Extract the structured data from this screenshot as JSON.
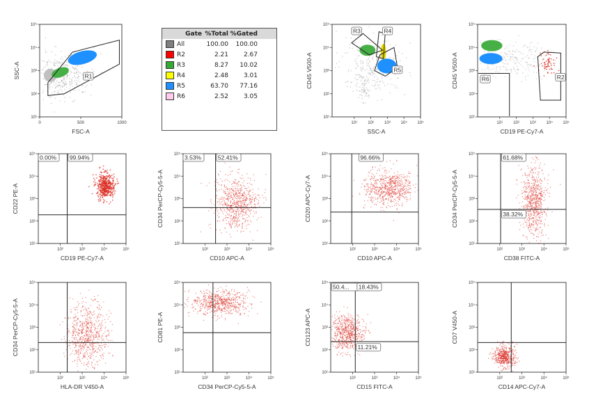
{
  "gate_table": {
    "headers": [
      "Gate",
      "%Total",
      "%Gated"
    ],
    "rows": [
      {
        "gate": "All",
        "total": "100.00",
        "gated": "100.00",
        "color": "#808080"
      },
      {
        "gate": "R2",
        "total": "2.21",
        "gated": "2.67",
        "color": "#ff0000"
      },
      {
        "gate": "R3",
        "total": "8.27",
        "gated": "10.02",
        "color": "#33aa33"
      },
      {
        "gate": "R4",
        "total": "2.48",
        "gated": "3.01",
        "color": "#ffff00"
      },
      {
        "gate": "R5",
        "total": "63.70",
        "gated": "77.16",
        "color": "#1e90ff"
      },
      {
        "gate": "R6",
        "total": "2.52",
        "gated": "3.05",
        "color": "#ffccee"
      }
    ]
  },
  "chart_data": [
    {
      "id": "p1",
      "type": "scatter",
      "xlabel": "FSC-A",
      "ylabel": "SSC-A",
      "xscale": "linear",
      "xticks": [
        "0",
        "500",
        "1000"
      ],
      "yticks": [
        "10¹",
        "10²",
        "10³",
        "10⁴",
        "10⁵"
      ],
      "gates": [
        "R1"
      ],
      "populations": [
        "gray",
        "green",
        "blue"
      ]
    },
    {
      "id": "p3",
      "type": "scatter",
      "xlabel": "SSC-A",
      "ylabel": "CD45 V500-A",
      "xticks": [
        "10¹",
        "10²",
        "10³",
        "10⁴",
        "10⁵"
      ],
      "yticks": [
        "10¹",
        "10²",
        "10³",
        "10⁴",
        "10⁵"
      ],
      "gates": [
        "R3",
        "R4",
        "R5"
      ],
      "populations": [
        "gray",
        "green",
        "yellow",
        "blue"
      ]
    },
    {
      "id": "p4",
      "type": "scatter",
      "xlabel": "CD19 PE-Cy7-A",
      "ylabel": "CD45 V500-A",
      "xticks": [
        "10¹",
        "10²",
        "10³",
        "10⁴",
        "10⁵"
      ],
      "yticks": [
        "10¹",
        "10²",
        "10³",
        "10⁴",
        "10⁵"
      ],
      "gates": [
        "R6",
        "R2"
      ],
      "populations": [
        "gray",
        "green",
        "blue",
        "red"
      ]
    },
    {
      "id": "p5",
      "type": "scatter",
      "xlabel": "CD19 PE-Cy7-A",
      "ylabel": "CD22 PE-A",
      "xticks": [
        "10²",
        "10³",
        "10⁴",
        "10⁵"
      ],
      "yticks": [
        "10¹",
        "10²",
        "10³",
        "10⁴",
        "10⁵"
      ],
      "quadrant_labels": [
        "0.00%",
        "99.94%"
      ]
    },
    {
      "id": "p6",
      "type": "scatter",
      "xlabel": "CD10 APC-A",
      "ylabel": "CD34 PerCP-Cy5-5-A",
      "xticks": [
        "10²",
        "10³",
        "10⁴",
        "10⁵"
      ],
      "yticks": [
        "10¹",
        "10²",
        "10³",
        "10⁴",
        "10⁵"
      ],
      "quadrant_labels": [
        "3.53%",
        "52.41%"
      ]
    },
    {
      "id": "p7",
      "type": "scatter",
      "xlabel": "CD10 APC-A",
      "ylabel": "CD20 APC-Cy7-A",
      "xticks": [
        "10²",
        "10³",
        "10⁴",
        "10⁵"
      ],
      "yticks": [
        "10¹",
        "10²",
        "10³",
        "10⁴",
        "10⁵"
      ],
      "quadrant_labels": [
        "96.66%"
      ]
    },
    {
      "id": "p8",
      "type": "scatter",
      "xlabel": "CD38 FITC-A",
      "ylabel": "CD34 PerCP-Cy5-5-A",
      "xticks": [
        "10²",
        "10³",
        "10⁴",
        "10⁵"
      ],
      "yticks": [
        "10¹",
        "10²",
        "10³",
        "10⁴",
        "10⁵"
      ],
      "quadrant_labels": [
        "61.68%",
        "38.32%"
      ]
    },
    {
      "id": "p9",
      "type": "scatter",
      "xlabel": "HLA-DR V450-A",
      "ylabel": "CD34 PerCP-Cy5-5-A",
      "xticks": [
        "10²",
        "10³",
        "10⁴",
        "10⁵"
      ],
      "yticks": [
        "10¹",
        "10²",
        "10³",
        "10⁴",
        "10⁵"
      ],
      "quadrant_labels": []
    },
    {
      "id": "p10",
      "type": "scatter",
      "xlabel": "CD34 PerCP-Cy5-5-A",
      "ylabel": "CD81 PE-A",
      "xticks": [
        "10²",
        "10³",
        "10⁴",
        "10⁵"
      ],
      "yticks": [
        "10¹",
        "10²",
        "10³",
        "10⁴",
        "10⁵"
      ],
      "quadrant_labels": []
    },
    {
      "id": "p11",
      "type": "scatter",
      "xlabel": "CD15 FITC-A",
      "ylabel": "CD123 APC-A",
      "xticks": [
        "10²",
        "10³",
        "10⁴",
        "10⁵"
      ],
      "yticks": [
        "10¹",
        "10²",
        "10³",
        "10⁴",
        "10⁵"
      ],
      "quadrant_labels": [
        "50.4...",
        "18.43%",
        "11.21%"
      ]
    },
    {
      "id": "p12",
      "type": "scatter",
      "xlabel": "CD14 APC-Cy7-A",
      "ylabel": "CD7 V450-A",
      "xticks": [
        "10²",
        "10³",
        "10⁴",
        "10⁵"
      ],
      "yticks": [
        "10¹",
        "10²",
        "10³",
        "10⁴",
        "10⁵"
      ],
      "quadrant_labels": []
    }
  ]
}
